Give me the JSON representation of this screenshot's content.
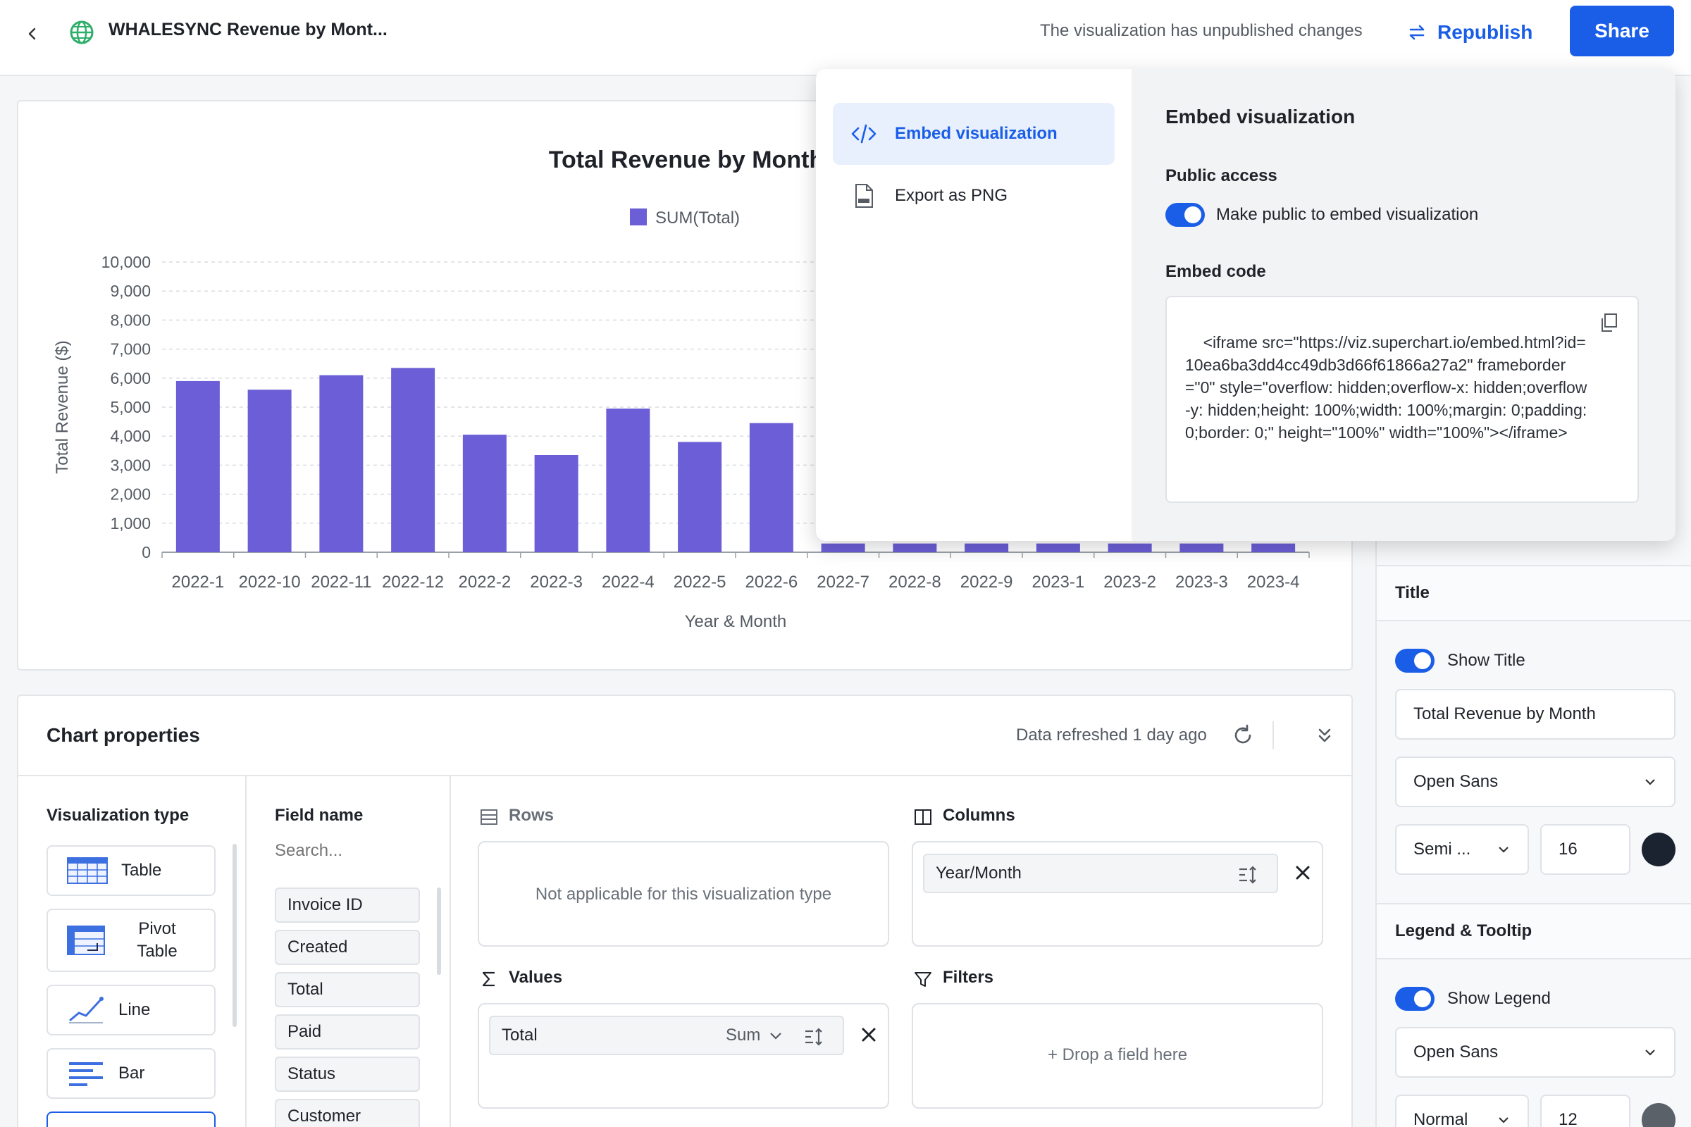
{
  "topbar": {
    "title": "WHALESYNC Revenue by Mont...",
    "unpublished": "The visualization has unpublished changes",
    "republish": "Republish",
    "share": "Share"
  },
  "colors": {
    "accent": "#1a5ee8",
    "bar": "#6b5ed6",
    "title_swatch": "#1b2230",
    "legend_swatch": "#5b6169"
  },
  "chart_data": {
    "type": "bar",
    "title": "Total Revenue by Month",
    "legend": [
      "SUM(Total)"
    ],
    "legend_placement": "top",
    "xlabel": "Year & Month",
    "ylabel": "Total Revenue ($)",
    "ylim": [
      0,
      10000
    ],
    "yticks": [
      "0",
      "1,000",
      "2,000",
      "3,000",
      "4,000",
      "5,000",
      "6,000",
      "7,000",
      "8,000",
      "9,000",
      "10,000"
    ],
    "grid": true,
    "categories": [
      "2022-1",
      "2022-10",
      "2022-11",
      "2022-12",
      "2022-2",
      "2022-3",
      "2022-4",
      "2022-5",
      "2022-6",
      "2022-7",
      "2022-8",
      "2022-9",
      "2023-1",
      "2023-2",
      "2023-3",
      "2023-4"
    ],
    "series": [
      {
        "name": "SUM(Total)",
        "values": [
          5900,
          5600,
          6100,
          6350,
          4050,
          3350,
          4950,
          3800,
          4450,
          300,
          300,
          300,
          300,
          300,
          300,
          300
        ]
      }
    ]
  },
  "props": {
    "title": "Chart properties",
    "refreshed": "Data refreshed 1 day ago",
    "viz_type_label": "Visualization type",
    "viz_types": [
      {
        "label": "Table",
        "icon": "table-icon"
      },
      {
        "label": "Pivot Table",
        "icon": "pivot-table-icon"
      },
      {
        "label": "Line",
        "icon": "line-chart-icon"
      },
      {
        "label": "Bar",
        "icon": "bar-chart-icon"
      }
    ],
    "field_name_label": "Field name",
    "search_placeholder": "Search...",
    "fields": [
      "Invoice ID",
      "Created",
      "Total",
      "Paid",
      "Status",
      "Customer"
    ],
    "rows_label": "Rows",
    "rows_empty": "Not applicable for this visualization type",
    "columns_label": "Columns",
    "columns_field": "Year/Month",
    "values_label": "Values",
    "values_field": "Total",
    "values_agg": "Sum",
    "filters_label": "Filters",
    "filters_empty": "+ Drop a field here"
  },
  "sidebar": {
    "title_section": "Title",
    "show_title": "Show Title",
    "title_value": "Total Revenue by Month",
    "title_font": "Open Sans",
    "title_weight": "Semi ...",
    "title_size": "16",
    "legend_section": "Legend & Tooltip",
    "show_legend": "Show Legend",
    "legend_font": "Open Sans",
    "legend_weight": "Normal",
    "legend_size": "12"
  },
  "popover": {
    "menu": [
      "Embed visualization",
      "Export as PNG"
    ],
    "heading": "Embed visualization",
    "public_access": "Public access",
    "make_public": "Make public to embed visualization",
    "embed_code_label": "Embed code",
    "embed_code": "<iframe src=\"https://viz.superchart.io/embed.html?id=10ea6ba3dd4cc49db3d66f61866a27a2\" frameborder=\"0\" style=\"overflow: hidden;overflow-x: hidden;overflow-y: hidden;height: 100%;width: 100%;margin: 0;padding: 0;border: 0;\" height=\"100%\" width=\"100%\"></iframe>"
  }
}
